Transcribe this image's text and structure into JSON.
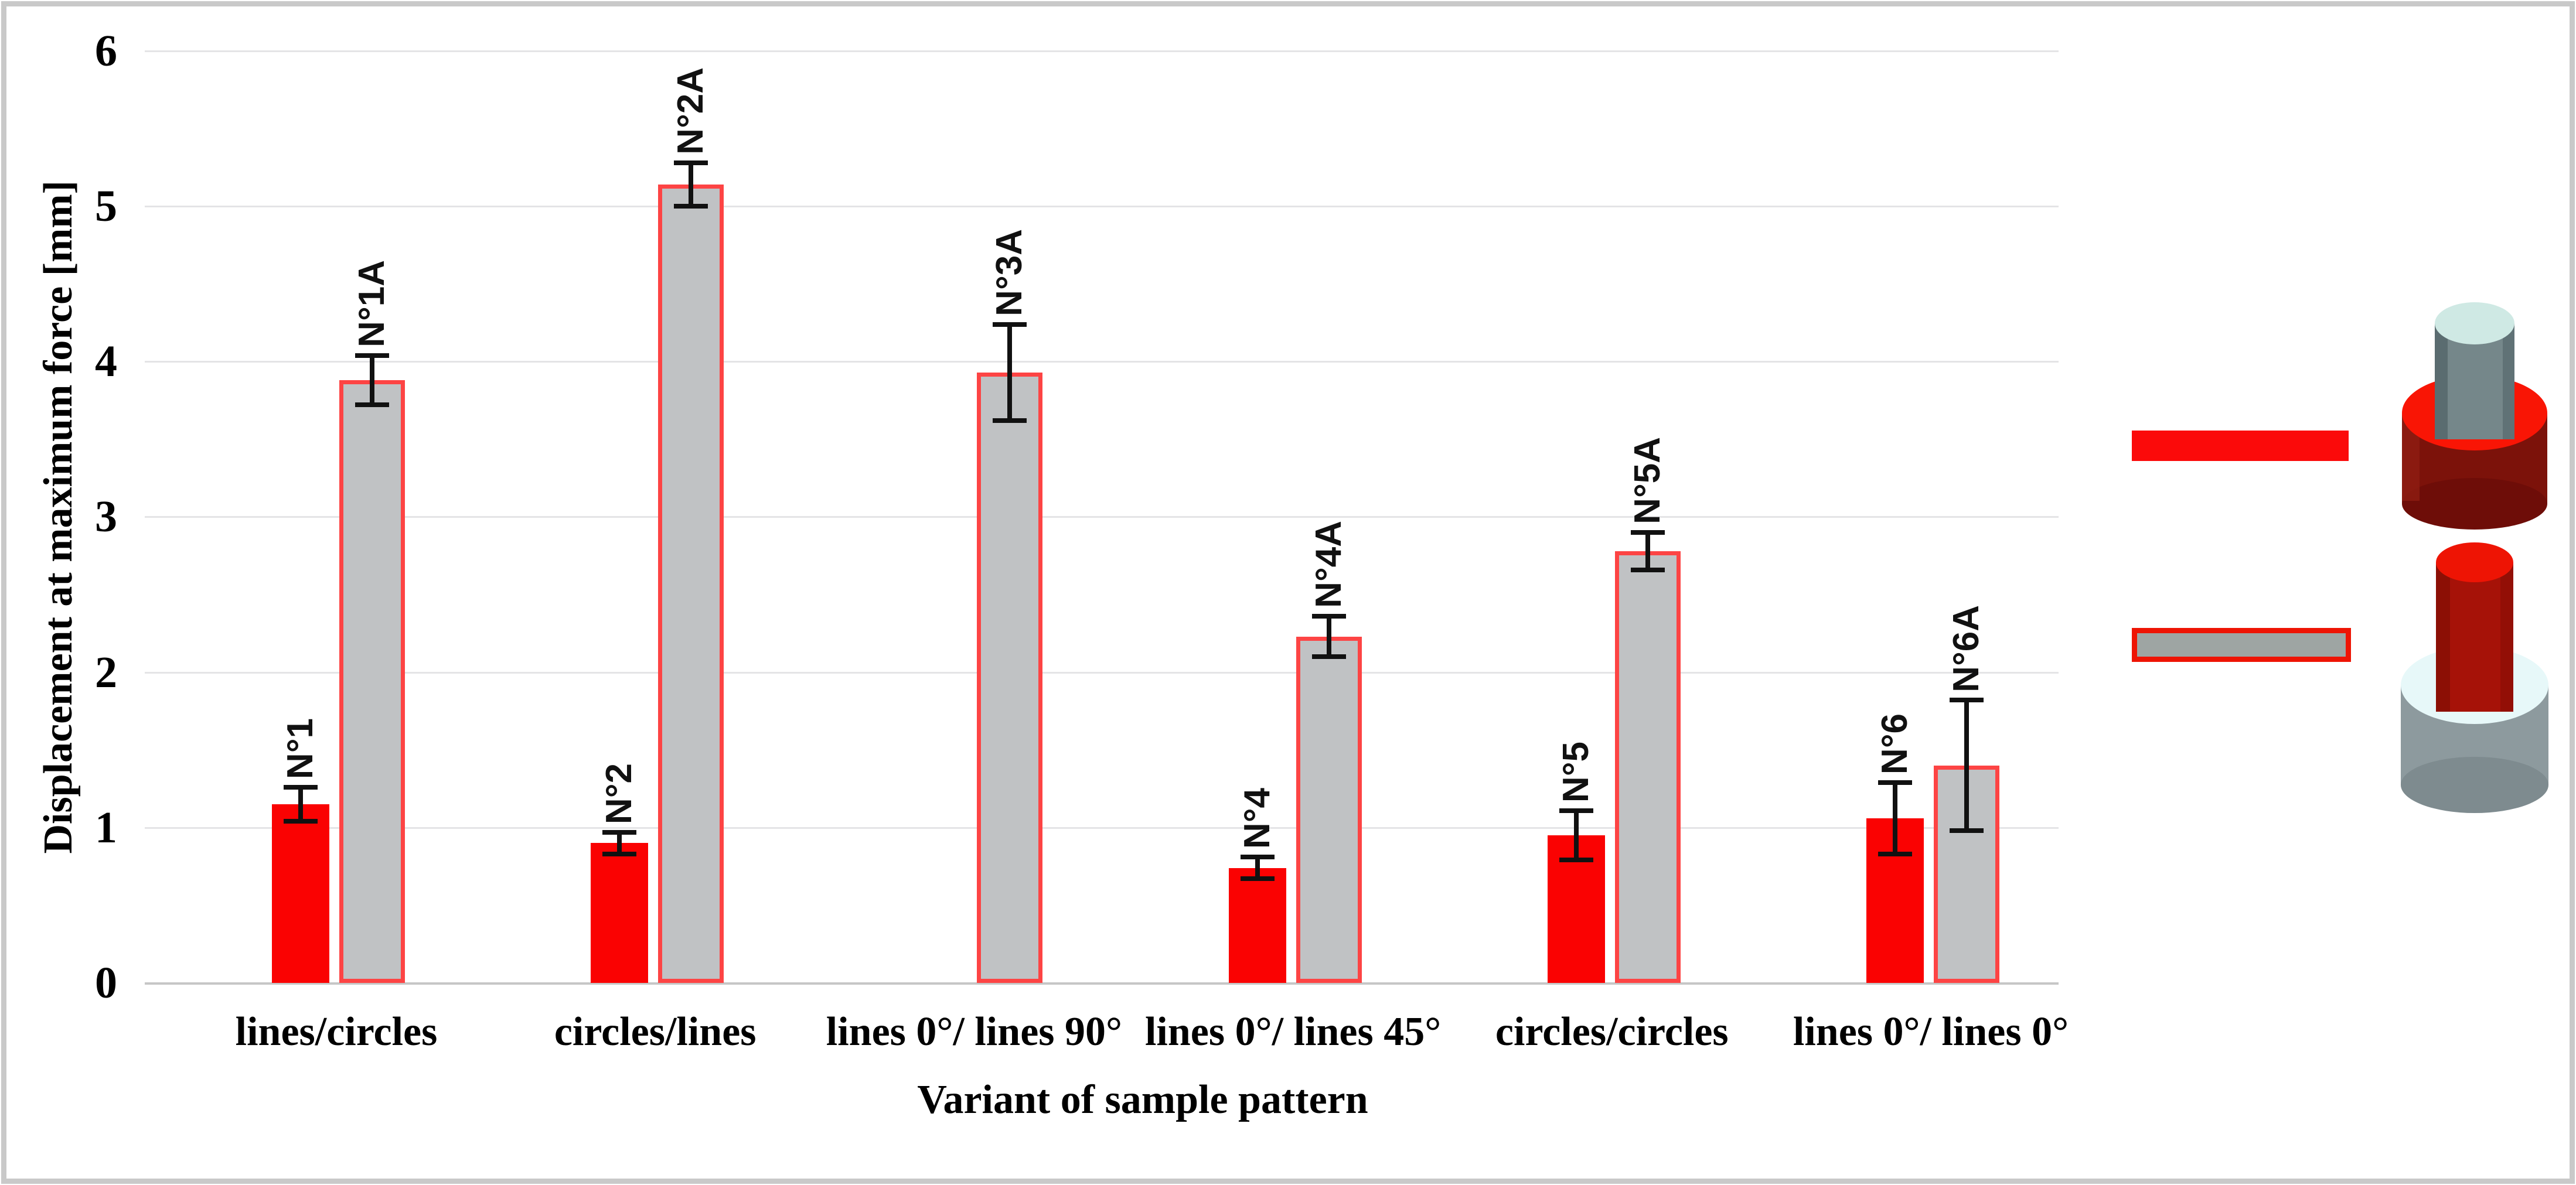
{
  "figure": {
    "frame_color": "#c9c9c9",
    "background": "#ffffff"
  },
  "chart_data": {
    "type": "bar",
    "title": "",
    "ylabel": "Displacement at maximum force [mm]",
    "xlabel": "Variant of sample pattern",
    "ylim": [
      0,
      6
    ],
    "yticks": [
      0,
      1,
      2,
      3,
      4,
      5,
      6
    ],
    "grid": true,
    "error_bars": true,
    "legend_position": "right-outside",
    "categories": [
      "lines/circles",
      "circles/lines",
      "lines 0°/ lines 90°",
      "lines 0°/ lines 45°",
      "circles/circles",
      "lines 0°/ lines 0°"
    ],
    "series": [
      {
        "name": "solid red",
        "color": "#fa0202",
        "points": [
          {
            "label": "N°1",
            "value": 1.15,
            "error": 0.11
          },
          {
            "label": "N°2",
            "value": 0.9,
            "error": 0.07
          },
          null,
          {
            "label": "N°4",
            "value": 0.74,
            "error": 0.07
          },
          {
            "label": "N°5",
            "value": 0.95,
            "error": 0.16
          },
          {
            "label": "N°6",
            "value": 1.06,
            "error": 0.23
          }
        ]
      },
      {
        "name": "grey with red outline",
        "color": "#c0c2c4",
        "border_color": "#fd4444",
        "points": [
          {
            "label": "N°1A",
            "value": 3.88,
            "error": 0.16
          },
          {
            "label": "N°2A",
            "value": 5.14,
            "error": 0.14
          },
          {
            "label": "N°3A",
            "value": 3.93,
            "error": 0.31
          },
          {
            "label": "N°4A",
            "value": 2.23,
            "error": 0.13
          },
          {
            "label": "N°5A",
            "value": 2.78,
            "error": 0.12
          },
          {
            "label": "N°6A",
            "value": 1.4,
            "error": 0.42
          }
        ]
      }
    ]
  },
  "legend": {
    "items": [
      {
        "icon": "red-solid-swatch",
        "color": "#fb0a0a",
        "specimen_icon": "grey-pin-in-red-base-cylinder-icon"
      },
      {
        "icon": "grey-red-outline-swatch",
        "color": "#9ea5a3",
        "border_color": "#ee1404",
        "specimen_icon": "red-pin-in-grey-base-cylinder-icon"
      }
    ]
  }
}
